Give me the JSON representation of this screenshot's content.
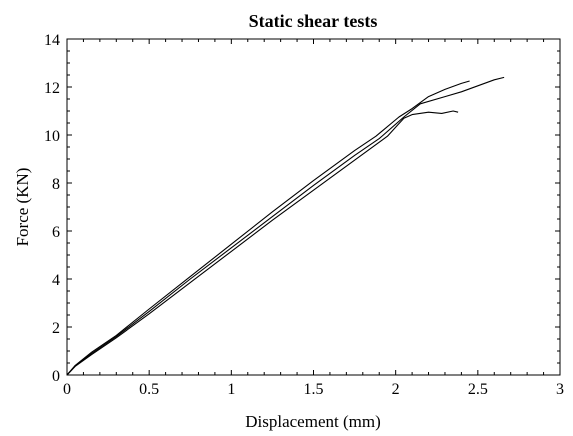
{
  "chart_data": {
    "type": "line",
    "title": "Static shear tests",
    "xlabel": "Displacement (mm)",
    "ylabel": "Force (KN)",
    "xlim": [
      0,
      3
    ],
    "ylim": [
      0,
      14
    ],
    "xticks": [
      0,
      0.5,
      1,
      1.5,
      2,
      2.5,
      3
    ],
    "xtick_labels": [
      "0",
      "0.5",
      "1",
      "1.5",
      "2",
      "2.5",
      "3"
    ],
    "yticks": [
      0,
      2,
      4,
      6,
      8,
      10,
      12,
      14
    ],
    "ytick_labels": [
      "0",
      "2",
      "4",
      "6",
      "8",
      "10",
      "12",
      "14"
    ],
    "grid": false,
    "legend": false,
    "series": [
      {
        "points": [
          [
            0,
            0
          ],
          [
            0.05,
            0.4
          ],
          [
            0.15,
            0.95
          ],
          [
            0.3,
            1.65
          ],
          [
            0.5,
            2.75
          ],
          [
            0.75,
            4.1
          ],
          [
            1.0,
            5.45
          ],
          [
            1.25,
            6.8
          ],
          [
            1.5,
            8.1
          ],
          [
            1.75,
            9.35
          ],
          [
            1.88,
            9.95
          ],
          [
            2.02,
            10.75
          ],
          [
            2.1,
            11.1
          ],
          [
            2.2,
            11.6
          ],
          [
            2.3,
            11.9
          ],
          [
            2.4,
            12.15
          ],
          [
            2.45,
            12.25
          ]
        ]
      },
      {
        "points": [
          [
            0,
            0
          ],
          [
            0.05,
            0.38
          ],
          [
            0.15,
            0.9
          ],
          [
            0.3,
            1.6
          ],
          [
            0.5,
            2.65
          ],
          [
            0.75,
            4.0
          ],
          [
            1.0,
            5.3
          ],
          [
            1.25,
            6.6
          ],
          [
            1.5,
            7.9
          ],
          [
            1.75,
            9.15
          ],
          [
            1.9,
            9.85
          ],
          [
            2.05,
            10.75
          ],
          [
            2.15,
            11.3
          ],
          [
            2.3,
            11.6
          ],
          [
            2.4,
            11.8
          ],
          [
            2.5,
            12.05
          ],
          [
            2.6,
            12.3
          ],
          [
            2.66,
            12.4
          ]
        ]
      },
      {
        "points": [
          [
            0,
            0
          ],
          [
            0.05,
            0.36
          ],
          [
            0.15,
            0.85
          ],
          [
            0.3,
            1.55
          ],
          [
            0.5,
            2.55
          ],
          [
            0.75,
            3.85
          ],
          [
            1.0,
            5.15
          ],
          [
            1.25,
            6.45
          ],
          [
            1.5,
            7.7
          ],
          [
            1.75,
            8.95
          ],
          [
            1.95,
            9.95
          ],
          [
            2.05,
            10.7
          ],
          [
            2.1,
            10.85
          ],
          [
            2.2,
            10.95
          ],
          [
            2.28,
            10.9
          ],
          [
            2.35,
            11.0
          ],
          [
            2.38,
            10.95
          ]
        ]
      }
    ]
  }
}
